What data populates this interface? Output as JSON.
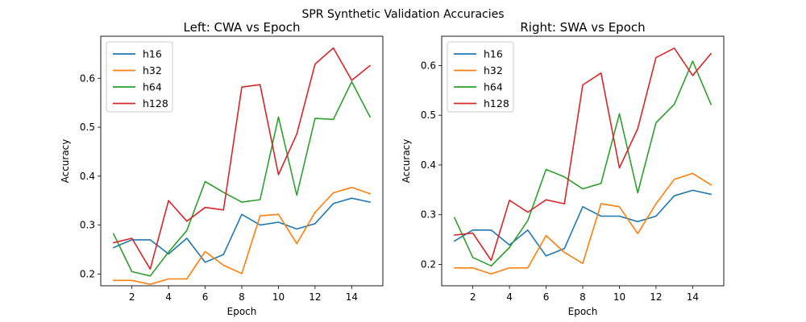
{
  "figure": {
    "title": "SPR Synthetic Validation Accuracies"
  },
  "chart_data": [
    {
      "type": "line",
      "title": "Left: CWA vs Epoch",
      "xlabel": "Epoch",
      "ylabel": "Accuracy",
      "xlim": [
        0.3,
        15.7
      ],
      "ylim": [
        0.176,
        0.686
      ],
      "xticks": [
        2,
        4,
        6,
        8,
        10,
        12,
        14
      ],
      "yticks": [
        0.2,
        0.3,
        0.4,
        0.5,
        0.6
      ],
      "x": [
        1,
        2,
        3,
        4,
        5,
        6,
        7,
        8,
        9,
        10,
        11,
        12,
        13,
        14,
        15
      ],
      "legend_position": "upper-left",
      "grid": false,
      "series": [
        {
          "name": "h16",
          "color": "#1f77b4",
          "values": [
            0.254,
            0.27,
            0.27,
            0.241,
            0.273,
            0.224,
            0.24,
            0.322,
            0.3,
            0.306,
            0.292,
            0.303,
            0.344,
            0.355,
            0.347
          ]
        },
        {
          "name": "h32",
          "color": "#ff7f0e",
          "values": [
            0.187,
            0.187,
            0.179,
            0.19,
            0.19,
            0.246,
            0.218,
            0.201,
            0.319,
            0.322,
            0.262,
            0.326,
            0.366,
            0.377,
            0.364
          ]
        },
        {
          "name": "h64",
          "color": "#2ca02c",
          "values": [
            0.282,
            0.205,
            0.196,
            0.245,
            0.289,
            0.389,
            0.367,
            0.347,
            0.352,
            0.521,
            0.361,
            0.518,
            0.516,
            0.593,
            0.521
          ]
        },
        {
          "name": "h128",
          "color": "#d62728",
          "values": [
            0.264,
            0.273,
            0.21,
            0.35,
            0.308,
            0.336,
            0.331,
            0.582,
            0.587,
            0.403,
            0.486,
            0.629,
            0.662,
            0.596,
            0.626
          ]
        }
      ]
    },
    {
      "type": "line",
      "title": "Right: SWA vs Epoch",
      "xlabel": "Epoch",
      "ylabel": "Accuracy",
      "xlim": [
        0.3,
        15.7
      ],
      "ylim": [
        0.157,
        0.659
      ],
      "xticks": [
        2,
        4,
        6,
        8,
        10,
        12,
        14
      ],
      "yticks": [
        0.2,
        0.3,
        0.4,
        0.5,
        0.6
      ],
      "x": [
        1,
        2,
        3,
        4,
        5,
        6,
        7,
        8,
        9,
        10,
        11,
        12,
        13,
        14,
        15
      ],
      "legend_position": "upper-left",
      "grid": false,
      "series": [
        {
          "name": "h16",
          "color": "#1f77b4",
          "values": [
            0.247,
            0.269,
            0.269,
            0.239,
            0.269,
            0.217,
            0.232,
            0.316,
            0.297,
            0.297,
            0.286,
            0.297,
            0.338,
            0.349,
            0.341
          ]
        },
        {
          "name": "h32",
          "color": "#ff7f0e",
          "values": [
            0.193,
            0.193,
            0.181,
            0.193,
            0.193,
            0.258,
            0.224,
            0.202,
            0.322,
            0.316,
            0.262,
            0.322,
            0.371,
            0.383,
            0.36
          ]
        },
        {
          "name": "h64",
          "color": "#2ca02c",
          "values": [
            0.294,
            0.214,
            0.197,
            0.234,
            0.288,
            0.391,
            0.376,
            0.352,
            0.363,
            0.503,
            0.344,
            0.485,
            0.522,
            0.609,
            0.522
          ]
        },
        {
          "name": "h128",
          "color": "#d62728",
          "values": [
            0.259,
            0.263,
            0.208,
            0.329,
            0.305,
            0.33,
            0.322,
            0.561,
            0.585,
            0.394,
            0.473,
            0.616,
            0.635,
            0.58,
            0.624
          ]
        }
      ]
    }
  ]
}
